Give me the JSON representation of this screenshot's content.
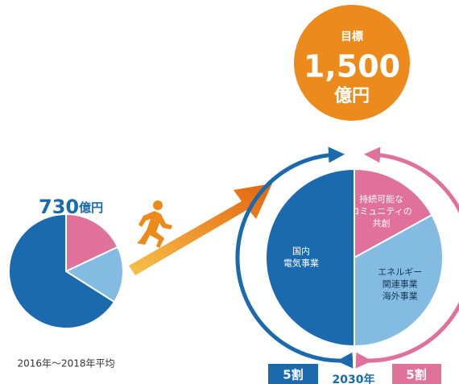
{
  "chart_data": [
    {
      "type": "pie",
      "title": "730",
      "title_unit": "億円",
      "caption": "2016年〜2018年平均",
      "categories": [
        null,
        null,
        null
      ],
      "values": [
        18,
        16,
        66
      ],
      "colors": [
        "#e0719a",
        "#84bbe2",
        "#1a6aad"
      ]
    },
    {
      "type": "pie",
      "caption": "2030年",
      "categories": [
        [
          "持続可能な",
          "コミュニティの",
          "共創"
        ],
        [
          "エネルギー",
          "関連事業",
          "海外事業"
        ],
        [
          "国内",
          "電気事業"
        ]
      ],
      "values": [
        17,
        33,
        50
      ],
      "colors": [
        "#e0719a",
        "#84bbe2",
        "#1a6aad"
      ],
      "annotations": [
        "5割",
        "5割"
      ]
    }
  ],
  "target": {
    "label": "目標",
    "value": "1,500",
    "unit": "億円"
  }
}
